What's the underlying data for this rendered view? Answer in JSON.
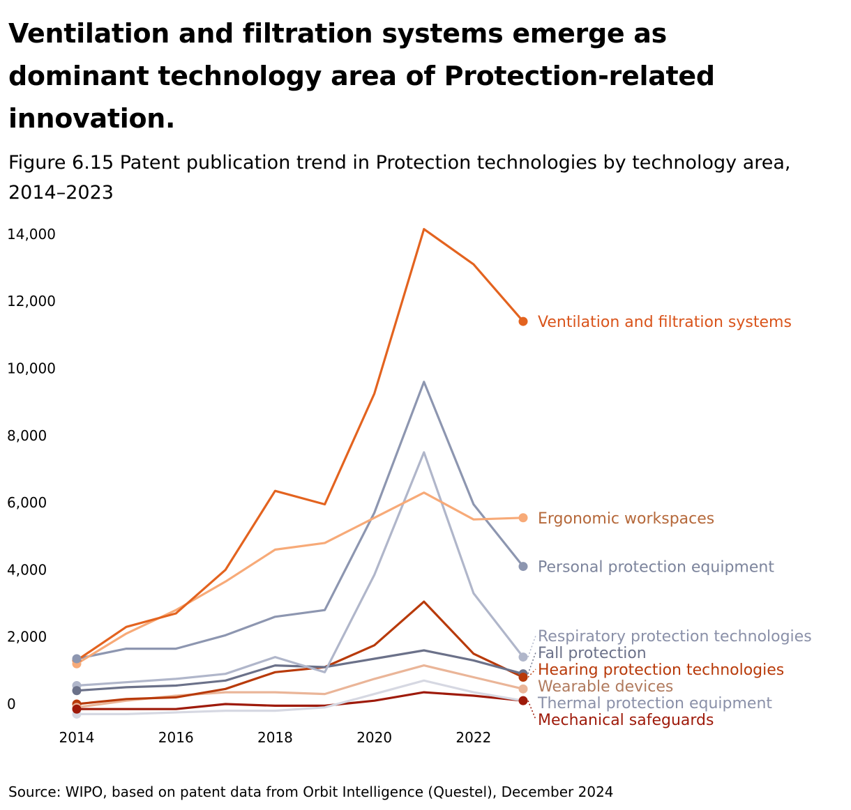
{
  "title": "Ventilation and filtration systems emerge as dominant technology area of Protection-related innovation.",
  "subtitle": "Figure 6.15 Patent publication trend in Protection technologies by technology area, 2014–2023",
  "source": "Source: WIPO, based on patent data from Orbit Intelligence (Questel), December 2024",
  "chart_data": {
    "type": "line",
    "x": [
      2014,
      2015,
      2016,
      2017,
      2018,
      2019,
      2020,
      2021,
      2022,
      2023
    ],
    "xticks": [
      2014,
      2016,
      2018,
      2020,
      2022
    ],
    "xtick_labels": [
      "2014",
      "2016",
      "2018",
      "2020",
      "2022"
    ],
    "yticks": [
      0,
      2000,
      4000,
      6000,
      8000,
      10000,
      12000,
      14000
    ],
    "ytick_labels": [
      "0",
      "2,000",
      "4,000",
      "6,000",
      "8,000",
      "10,000",
      "12,000",
      "14,000"
    ],
    "ylim": [
      -400,
      14200
    ],
    "xlabel": "",
    "ylabel": "",
    "grid": false,
    "legend": "direct labels at line ends (right)",
    "series": [
      {
        "name": "Ventilation and filtration systems",
        "color": "#e3631f",
        "label_color": "#d9541b",
        "values": [
          1300,
          2300,
          2700,
          4000,
          6350,
          5950,
          9250,
          14150,
          13100,
          11400
        ]
      },
      {
        "name": "Ergonomic workspaces",
        "color": "#f7aa78",
        "label_color": "#b5683a",
        "values": [
          1200,
          2100,
          2800,
          3650,
          4600,
          4800,
          5550,
          6300,
          5500,
          5550
        ]
      },
      {
        "name": "Personal protection equipment",
        "color": "#8d96b0",
        "label_color": "#7c849c",
        "values": [
          1350,
          1650,
          1650,
          2050,
          2600,
          2800,
          5700,
          9600,
          5950,
          4100
        ]
      },
      {
        "name": "Respiratory protection technologies",
        "color": "#b0b6ca",
        "label_color": "#8a90a8",
        "values": [
          550,
          650,
          750,
          900,
          1400,
          950,
          3850,
          7500,
          3300,
          1400
        ]
      },
      {
        "name": "Fall protection",
        "color": "#6b7189",
        "label_color": "#6b7189",
        "values": [
          400,
          500,
          550,
          700,
          1150,
          1100,
          1350,
          1600,
          1300,
          900
        ]
      },
      {
        "name": "Hearing protection technologies",
        "color": "#b83a0a",
        "label_color": "#b83a0a",
        "values": [
          0,
          150,
          200,
          450,
          950,
          1100,
          1750,
          3050,
          1500,
          800
        ]
      },
      {
        "name": "Wearable devices",
        "color": "#eab598",
        "label_color": "#b07a5d",
        "values": [
          -100,
          100,
          250,
          350,
          350,
          300,
          750,
          1150,
          800,
          450
        ]
      },
      {
        "name": "Thermal protection equipment",
        "color": "#d6d8e2",
        "label_color": "#8a90a8",
        "values": [
          -300,
          -300,
          -250,
          -200,
          -200,
          -100,
          300,
          700,
          350,
          100
        ]
      },
      {
        "name": "Mechanical safeguards",
        "color": "#9e1a0a",
        "label_color": "#9e1a0a",
        "values": [
          -150,
          -150,
          -150,
          0,
          -50,
          -50,
          100,
          350,
          250,
          100
        ]
      }
    ]
  }
}
